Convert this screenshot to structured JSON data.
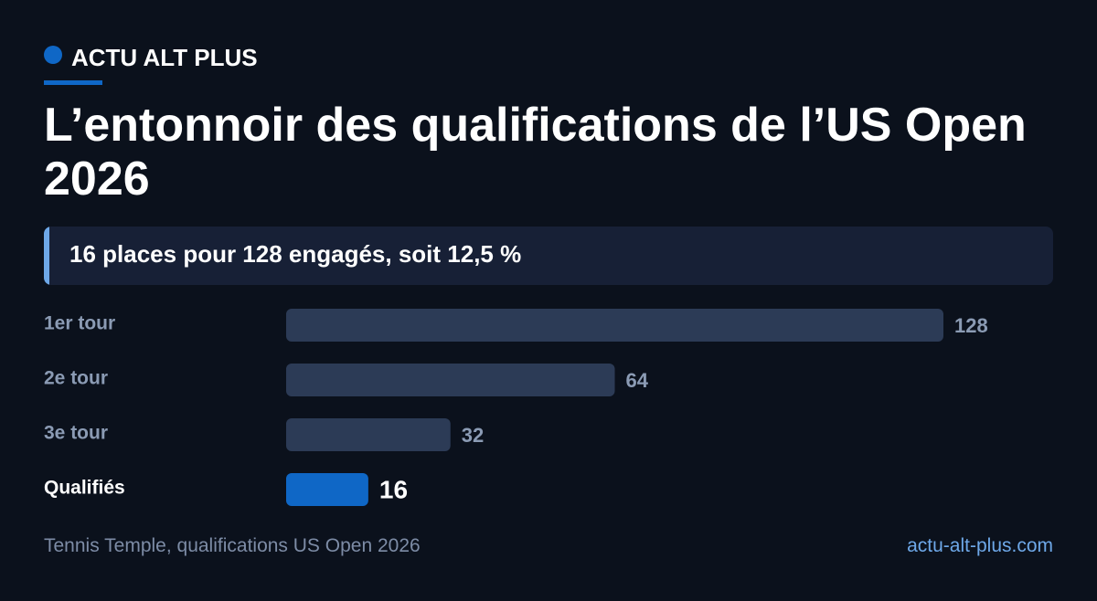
{
  "chart_data": {
    "type": "bar",
    "orientation": "horizontal",
    "brand": "ACTU ALT PLUS",
    "title": "L’entonnoir des qualifications de l’US Open 2026",
    "subtitle": "16 places pour 128 engagés, soit 12,5 %",
    "categories": [
      "1er tour",
      "2e tour",
      "3e tour",
      "Qualifiés"
    ],
    "values": [
      128,
      64,
      32,
      16
    ],
    "colors": [
      "#2c3b56",
      "#2c3b56",
      "#2c3b56",
      "#0f67c6"
    ],
    "source": "Tennis Temple, qualifications US Open 2026",
    "website": "actu-alt-plus.com"
  }
}
